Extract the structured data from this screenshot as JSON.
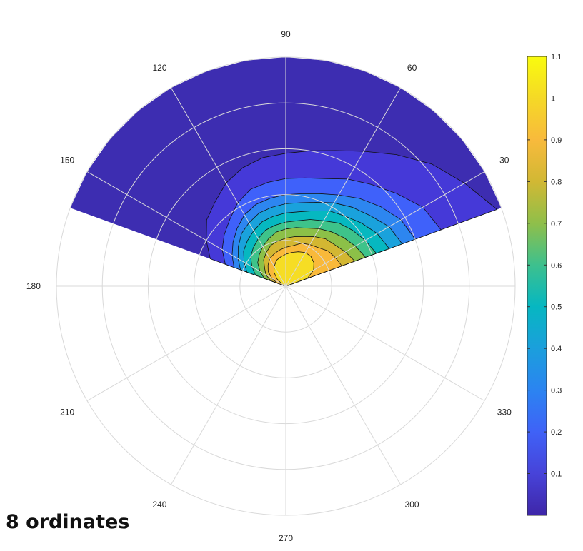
{
  "caption": "8 ordinates",
  "chart_data": {
    "type": "polar-contour",
    "title": "",
    "angle_ticks": [
      0,
      30,
      60,
      90,
      120,
      150,
      180,
      210,
      240,
      270,
      300,
      330
    ],
    "angle_labels": [
      "",
      "30",
      "60",
      "90",
      "120",
      "150",
      "180",
      "210",
      "240",
      "270",
      "300",
      "330"
    ],
    "angle_range_deg": [
      20,
      160
    ],
    "radial_grid_rings": 5,
    "levels": [
      0,
      0.1,
      0.2,
      0.3,
      0.4,
      0.5,
      0.6,
      0.7,
      0.8,
      0.9,
      1.0
    ],
    "level_colors": [
      "#3d2db1",
      "#4539d8",
      "#3f61fa",
      "#2d86f0",
      "#1aa2dc",
      "#06b8c0",
      "#3ec38a",
      "#8cc048",
      "#d3b732",
      "#f9b93a",
      "#f6dd24"
    ],
    "regions": [
      {
        "level": 0.0,
        "radius": [
          1.0,
          1.0,
          1.0,
          1.0,
          1.0,
          1.0,
          1.0,
          1.0,
          1.0,
          1.0,
          1.0,
          1.0,
          1.0,
          1.0,
          1.0
        ]
      },
      {
        "level": 0.1,
        "radius": [
          0.98,
          0.9,
          0.83,
          0.75,
          0.68,
          0.63,
          0.6,
          0.58,
          0.57,
          0.55,
          0.52,
          0.48,
          0.45,
          0.4,
          0.35
        ]
      },
      {
        "level": 0.2,
        "radius": [
          0.72,
          0.69,
          0.63,
          0.58,
          0.54,
          0.5,
          0.48,
          0.47,
          0.46,
          0.45,
          0.42,
          0.38,
          0.35,
          0.32,
          0.28
        ]
      },
      {
        "level": 0.3,
        "radius": [
          0.6,
          0.58,
          0.54,
          0.5,
          0.46,
          0.43,
          0.41,
          0.4,
          0.39,
          0.38,
          0.36,
          0.33,
          0.3,
          0.27,
          0.24
        ]
      },
      {
        "level": 0.4,
        "radius": [
          0.54,
          0.52,
          0.48,
          0.45,
          0.42,
          0.39,
          0.37,
          0.36,
          0.35,
          0.34,
          0.32,
          0.3,
          0.27,
          0.24,
          0.21
        ]
      },
      {
        "level": 0.5,
        "radius": [
          0.48,
          0.46,
          0.43,
          0.4,
          0.38,
          0.35,
          0.33,
          0.32,
          0.31,
          0.3,
          0.28,
          0.26,
          0.24,
          0.21,
          0.18
        ]
      },
      {
        "level": 0.6,
        "radius": [
          0.42,
          0.4,
          0.38,
          0.36,
          0.33,
          0.31,
          0.29,
          0.28,
          0.27,
          0.26,
          0.24,
          0.22,
          0.2,
          0.17,
          0.14
        ]
      },
      {
        "level": 0.7,
        "radius": [
          0.37,
          0.35,
          0.33,
          0.31,
          0.29,
          0.27,
          0.26,
          0.25,
          0.24,
          0.22,
          0.2,
          0.18,
          0.16,
          0.13,
          0.1
        ]
      },
      {
        "level": 0.8,
        "radius": [
          0.32,
          0.3,
          0.28,
          0.27,
          0.25,
          0.23,
          0.22,
          0.21,
          0.2,
          0.19,
          0.17,
          0.15,
          0.12,
          0.1,
          0.07
        ]
      },
      {
        "level": 0.9,
        "radius": [
          0.26,
          0.25,
          0.24,
          0.22,
          0.21,
          0.2,
          0.18,
          0.17,
          0.16,
          0.15,
          0.14,
          0.12,
          0.1,
          0.07,
          0.04
        ]
      },
      {
        "level": 1.0,
        "radius": [
          0.1,
          0.14,
          0.16,
          0.17,
          0.17,
          0.16,
          0.15,
          0.14,
          0.13,
          0.12,
          0.1,
          0.08,
          0.05,
          0.02,
          0.0
        ]
      }
    ],
    "colorbar": {
      "min": 0,
      "max": 1.1,
      "ticks": [
        0.1,
        0.2,
        0.3,
        0.4,
        0.5,
        0.6,
        0.7,
        0.8,
        0.9,
        1,
        1.1
      ],
      "tick_labels": [
        "0.1",
        "0.2",
        "0.3",
        "0.4",
        "0.5",
        "0.6",
        "0.7",
        "0.8",
        "0.9",
        "1",
        "1.1"
      ],
      "gradient": [
        "#3e26a8",
        "#4743d9",
        "#3f62f7",
        "#2b84f1",
        "#1b9fdc",
        "#06b7c1",
        "#3dc08e",
        "#8fbf4a",
        "#d1b834",
        "#f8ba3c",
        "#f5d926",
        "#f9fb0e"
      ]
    }
  }
}
